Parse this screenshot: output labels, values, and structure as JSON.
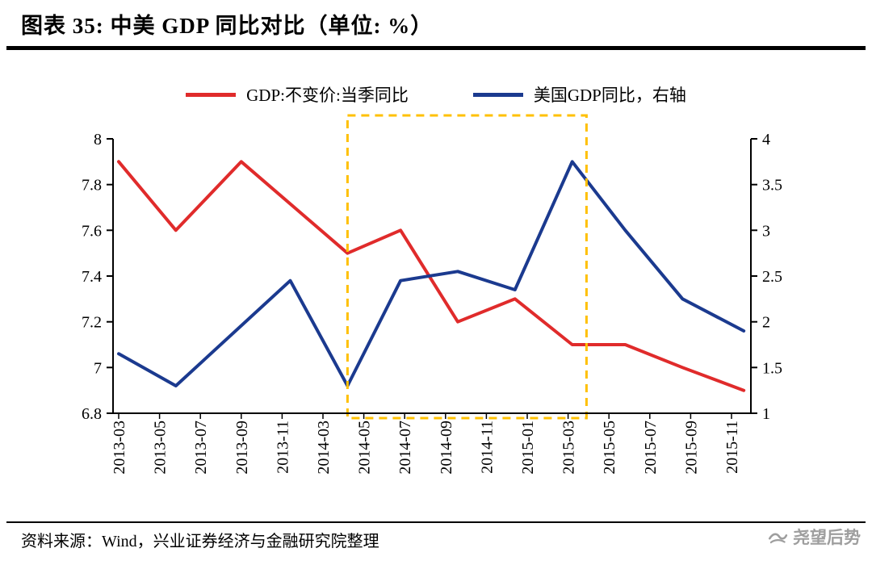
{
  "header": {
    "title": "图表 35: 中美 GDP 同比对比（单位: %）"
  },
  "footer": {
    "source": "资料来源：Wind，兴业证券经济与金融研究院整理",
    "watermark": "尧望后势"
  },
  "chart_data": {
    "type": "line",
    "title": "中美 GDP 同比对比",
    "unit": "%",
    "legend_position": "top",
    "grid": false,
    "categories": [
      "2013-03",
      "2013-05",
      "2013-07",
      "2013-09",
      "2013-11",
      "2014-03",
      "2014-05",
      "2014-07",
      "2014-09",
      "2014-11",
      "2015-01",
      "2015-03",
      "2015-05",
      "2015-07",
      "2015-09",
      "2015-11"
    ],
    "left_axis": {
      "min": 6.8,
      "max": 8,
      "ticks": [
        8,
        7.8,
        7.6,
        7.4,
        7.2,
        7,
        6.8
      ]
    },
    "right_axis": {
      "min": 1,
      "max": 4,
      "ticks": [
        4,
        3.5,
        3,
        2.5,
        2,
        1.5,
        1
      ]
    },
    "series": [
      {
        "name": "GDP:不变价:当季同比",
        "axis": "left",
        "color": "#e02b2b",
        "points": [
          [
            0,
            7.9
          ],
          [
            1.4,
            7.6
          ],
          [
            3,
            7.9
          ],
          [
            4.3,
            7.7
          ],
          [
            5.6,
            7.5
          ],
          [
            6.9,
            7.6
          ],
          [
            8.3,
            7.2
          ],
          [
            9.7,
            7.3
          ],
          [
            11.1,
            7.1
          ],
          [
            12.4,
            7.1
          ],
          [
            13.8,
            7.0
          ],
          [
            15.3,
            6.9
          ]
        ]
      },
      {
        "name": "美国GDP同比，右轴",
        "axis": "right",
        "color": "#1b3a8f",
        "points": [
          [
            0,
            1.65
          ],
          [
            1.4,
            1.3
          ],
          [
            4.2,
            2.45
          ],
          [
            5.6,
            1.3
          ],
          [
            6.9,
            2.45
          ],
          [
            8.3,
            2.55
          ],
          [
            9.7,
            2.35
          ],
          [
            11.1,
            3.75
          ],
          [
            12.4,
            3.0
          ],
          [
            13.8,
            2.25
          ],
          [
            15.3,
            1.9
          ]
        ]
      }
    ],
    "highlight_box": {
      "color": "#ffc000",
      "x_from": 5.6,
      "x_to": 11.45
    }
  }
}
